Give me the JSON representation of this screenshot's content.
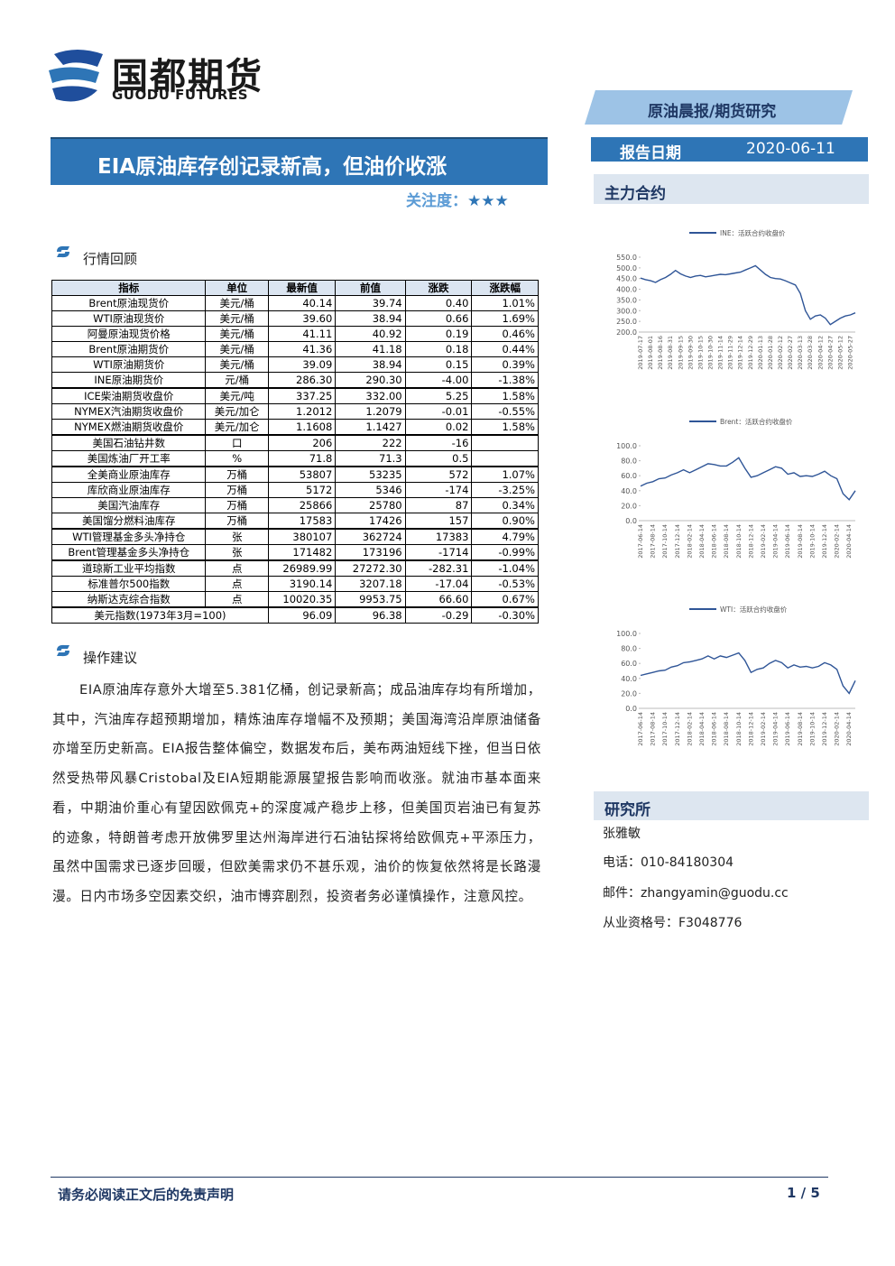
{
  "header": {
    "logo_cn": "国都期货",
    "logo_en": "GUODU FUTURES",
    "report_type": "原油晨报/期货研究",
    "date_label": "报告日期",
    "date": "2020-06-11"
  },
  "title": "EIA原油库存创记录新高，但油价收涨",
  "attention": {
    "label": "关注度：",
    "stars": "★★★"
  },
  "sections": {
    "market": "行情回顾",
    "advice": "操作建议",
    "contracts": "主力合约",
    "research": "研究所"
  },
  "table": {
    "header": [
      "指标",
      "单位",
      "最新值",
      "前值",
      "涨跌",
      "涨跌幅"
    ],
    "rows": [
      [
        "Brent原油现货价",
        "美元/桶",
        "40.14",
        "39.74",
        "0.40",
        "1.01%"
      ],
      [
        "WTI原油现货价",
        "美元/桶",
        "39.60",
        "38.94",
        "0.66",
        "1.69%"
      ],
      [
        "阿曼原油现货价格",
        "美元/桶",
        "41.11",
        "40.92",
        "0.19",
        "0.46%"
      ],
      [
        "Brent原油期货价",
        "美元/桶",
        "41.36",
        "41.18",
        "0.18",
        "0.44%"
      ],
      [
        "WTI原油期货价",
        "美元/桶",
        "39.09",
        "38.94",
        "0.15",
        "0.39%"
      ],
      [
        "INE原油期货价",
        "元/桶",
        "286.30",
        "290.30",
        "-4.00",
        "-1.38%"
      ],
      [
        "ICE柴油期货收盘价",
        "美元/吨",
        "337.25",
        "332.00",
        "5.25",
        "1.58%"
      ],
      [
        "NYMEX汽油期货收盘价",
        "美元/加仑",
        "1.2012",
        "1.2079",
        "-0.01",
        "-0.55%"
      ],
      [
        "NYMEX燃油期货收盘价",
        "美元/加仑",
        "1.1608",
        "1.1427",
        "0.02",
        "1.58%"
      ],
      [
        "美国石油钻井数",
        "口",
        "206",
        "222",
        "-16"
      ],
      [
        "美国炼油厂开工率",
        "%",
        "71.8",
        "71.3",
        "0.5"
      ],
      [
        "全美商业原油库存",
        "万桶",
        "53807",
        "53235",
        "572",
        "1.07%"
      ],
      [
        "库欣商业原油库存",
        "万桶",
        "5172",
        "5346",
        "-174",
        "-3.25%"
      ],
      [
        "美国汽油库存",
        "万桶",
        "25866",
        "25780",
        "87",
        "0.34%"
      ],
      [
        "美国馏分燃料油库存",
        "万桶",
        "17583",
        "17426",
        "157",
        "0.90%"
      ],
      [
        "WTI管理基金多头净持仓",
        "张",
        "380107",
        "362724",
        "17383",
        "4.79%"
      ],
      [
        "Brent管理基金多头净持仓",
        "张",
        "171482",
        "173196",
        "-1714",
        "-0.99%"
      ],
      [
        "道琼斯工业平均指数",
        "点",
        "26989.99",
        "27272.30",
        "-282.31",
        "-1.04%"
      ],
      [
        "标准普尔500指数",
        "点",
        "3190.14",
        "3207.18",
        "-17.04",
        "-0.53%"
      ],
      [
        "纳斯达克综合指数",
        "点",
        "10020.35",
        "9953.75",
        "66.60",
        "0.67%"
      ],
      [
        "美元指数(1973年3月=100)",
        "96.09",
        "96.38",
        "-0.29",
        "-0.30%"
      ]
    ]
  },
  "advice_text": "EIA原油库存意外大增至5.381亿桶，创记录新高；成品油库存均有所增加，其中，汽油库存超预期增加，精炼油库存增幅不及预期；美国海湾沿岸原油储备亦增至历史新高。EIA报告整体偏空，数据发布后，美布两油短线下挫，但当日依然受热带风暴Cristobal及EIA短期能源展望报告影响而收涨。就油市基本面来看，中期油价重心有望因欧佩克+的深度减产稳步上移，但美国页岩油已有复苏的迹象，特朗普考虑开放佛罗里达州海岸进行石油钻探将给欧佩克+平添压力，虽然中国需求已逐步回暖，但欧美需求仍不甚乐观，油价的恢复依然将是长路漫漫。日内市场多空因素交织，油市博弈剧烈，投资者务必谨慎操作，注意风控。",
  "analyst": {
    "name": "张雅敏",
    "phone": "电话：010-84180304",
    "email": "邮件：zhangyamin@guodu.cc",
    "license": "从业资格号：F3048776"
  },
  "footer": {
    "disclaimer": "请务必阅读正文后的免责声明",
    "page": "1 / 5"
  },
  "chart_data": [
    {
      "type": "line",
      "categories": [
        "2019-07-17",
        null,
        "2019-08-01",
        null,
        "2019-08-16",
        null,
        "2019-08-31",
        null,
        "2019-09-15",
        null,
        "2019-09-30",
        null,
        "2019-10-15",
        null,
        "2019-10-30",
        null,
        "2019-11-14",
        null,
        "2019-11-29",
        null,
        "2019-12-14",
        null,
        "2019-12-29",
        null,
        "2020-01-13",
        null,
        "2020-01-28",
        null,
        "2020-02-12",
        null,
        "2020-02-27",
        null,
        "2020-03-13",
        null,
        "2020-03-28",
        null,
        "2020-04-12",
        null,
        "2020-04-27",
        null,
        "2020-05-12",
        null,
        "2020-05-27",
        null
      ],
      "series": [
        {
          "name": "INE：活跃合约收盘价",
          "color": "#2f5597",
          "values": [
            452,
            445,
            440,
            432,
            445,
            455,
            470,
            488,
            472,
            462,
            455,
            462,
            465,
            458,
            462,
            466,
            470,
            468,
            472,
            476,
            480,
            490,
            500,
            510,
            490,
            470,
            455,
            450,
            448,
            440,
            430,
            420,
            380,
            300,
            260,
            275,
            280,
            265,
            235,
            250,
            265,
            275,
            280,
            290
          ]
        }
      ],
      "ylim": [
        200,
        550
      ],
      "yticks": [
        {
          "value": 200,
          "label": "200.0"
        },
        {
          "value": 250,
          "label": "250.0"
        },
        {
          "value": 300,
          "label": "300.0"
        },
        {
          "value": 350,
          "label": "350.0"
        },
        {
          "value": 400,
          "label": "400.0"
        },
        {
          "value": 450,
          "label": "450.0"
        },
        {
          "value": 500,
          "label": "500.0"
        },
        {
          "value": 550,
          "label": "550.0"
        }
      ]
    },
    {
      "type": "line",
      "categories": [
        "2017-06-14",
        null,
        "2017-08-14",
        null,
        "2017-10-14",
        null,
        "2017-12-14",
        null,
        "2018-02-14",
        null,
        "2018-04-14",
        null,
        "2018-06-14",
        null,
        "2018-08-14",
        null,
        "2018-10-14",
        null,
        "2018-12-14",
        null,
        "2019-02-14",
        null,
        "2019-04-14",
        null,
        "2019-06-14",
        null,
        "2019-08-14",
        null,
        "2019-10-14",
        null,
        "2019-12-14",
        null,
        "2020-02-14",
        null,
        "2020-04-14",
        null
      ],
      "series": [
        {
          "name": "Brent：活跃合约收盘价",
          "color": "#2f5597",
          "values": [
            46,
            50,
            52,
            56,
            57,
            61,
            64,
            68,
            64,
            68,
            72,
            76,
            75,
            73,
            73,
            78,
            84,
            70,
            58,
            60,
            64,
            68,
            72,
            70,
            62,
            64,
            59,
            60,
            59,
            62,
            66,
            60,
            56,
            36,
            28,
            40
          ]
        }
      ],
      "ylim": [
        0,
        100
      ],
      "yticks": [
        {
          "value": 0,
          "label": "0.0"
        },
        {
          "value": 20,
          "label": "20.0"
        },
        {
          "value": 40,
          "label": "40.0"
        },
        {
          "value": 60,
          "label": "60.0"
        },
        {
          "value": 80,
          "label": "80.0"
        },
        {
          "value": 100,
          "label": "100.0"
        }
      ]
    },
    {
      "type": "line",
      "categories": [
        "2017-06-14",
        null,
        "2017-08-14",
        null,
        "2017-10-14",
        null,
        "2017-12-14",
        null,
        "2018-02-14",
        null,
        "2018-04-14",
        null,
        "2018-06-14",
        null,
        "2018-08-14",
        null,
        "2018-10-14",
        null,
        "2018-12-14",
        null,
        "2019-02-14",
        null,
        "2019-04-14",
        null,
        "2019-06-14",
        null,
        "2019-08-14",
        null,
        "2019-10-14",
        null,
        "2019-12-14",
        null,
        "2020-02-14",
        null,
        "2020-04-14",
        null
      ],
      "series": [
        {
          "name": "WTI：活跃合约收盘价",
          "color": "#2f5597",
          "values": [
            44,
            46,
            48,
            50,
            51,
            55,
            57,
            61,
            62,
            64,
            66,
            70,
            66,
            70,
            68,
            71,
            74,
            64,
            48,
            52,
            54,
            60,
            64,
            61,
            54,
            58,
            55,
            56,
            54,
            56,
            61,
            58,
            52,
            30,
            20,
            37
          ]
        }
      ],
      "ylim": [
        0,
        100
      ],
      "yticks": [
        {
          "value": 0,
          "label": "0.0"
        },
        {
          "value": 20,
          "label": "20.0"
        },
        {
          "value": 40,
          "label": "40.0"
        },
        {
          "value": 60,
          "label": "60.0"
        },
        {
          "value": 80,
          "label": "80.0"
        },
        {
          "value": 100,
          "label": "100.0"
        }
      ]
    }
  ]
}
